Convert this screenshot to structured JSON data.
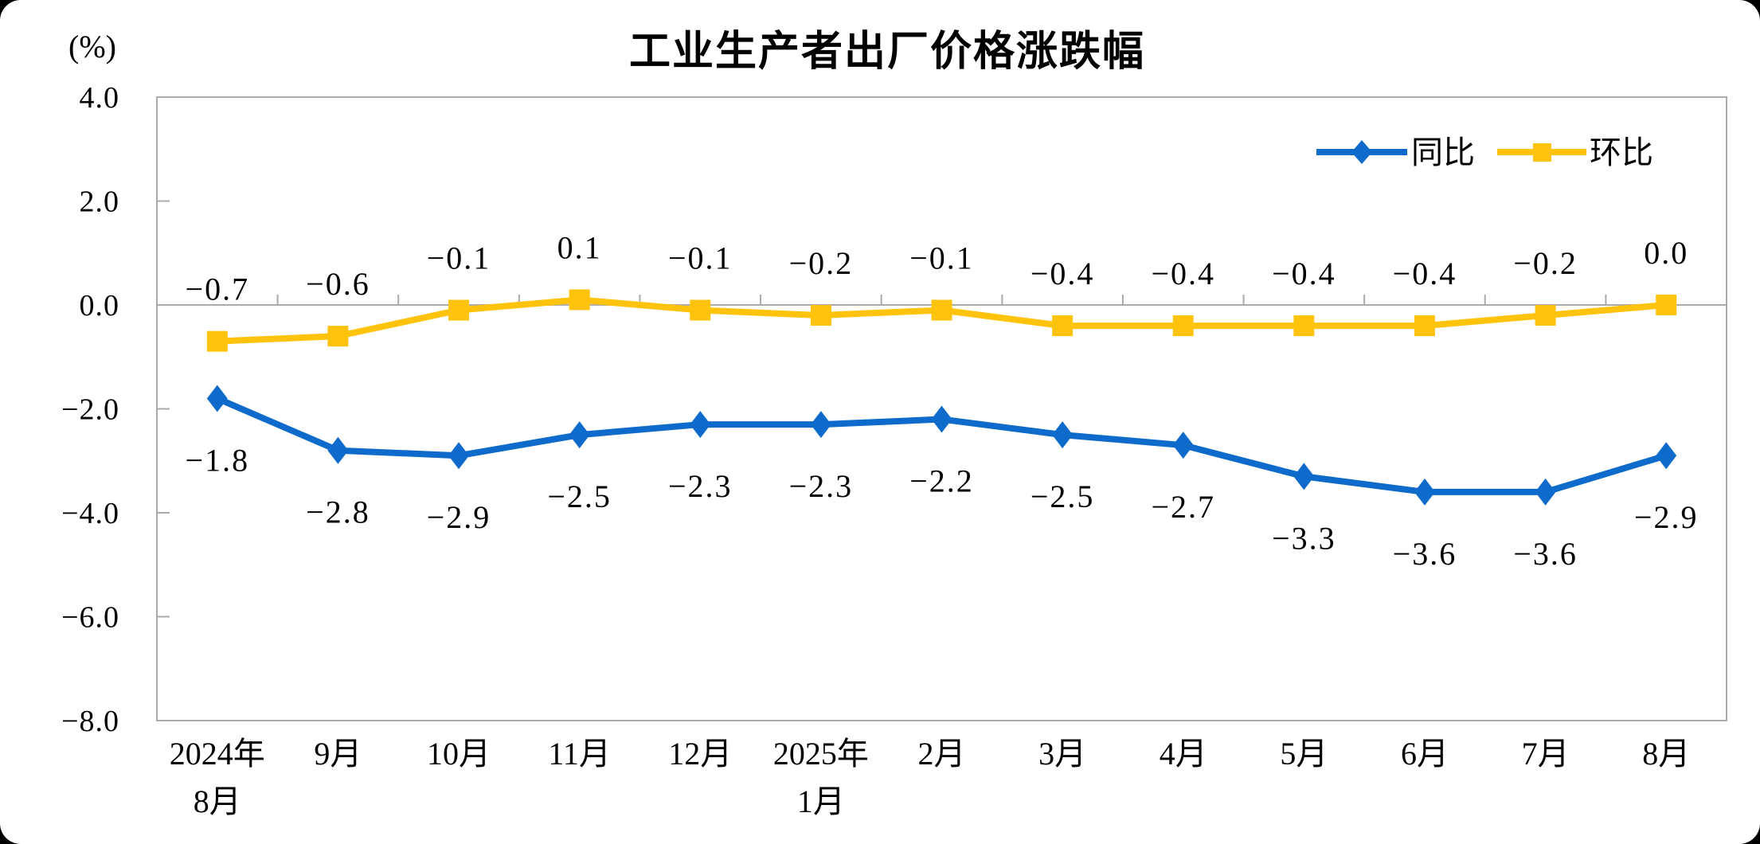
{
  "chart_data": {
    "type": "line",
    "title": "工业生产者出厂价格涨跌幅",
    "unit_label": "(%)",
    "categories": [
      [
        "2024年",
        "8月"
      ],
      [
        "9月"
      ],
      [
        "10月"
      ],
      [
        "11月"
      ],
      [
        "12月"
      ],
      [
        "2025年",
        "1月"
      ],
      [
        "2月"
      ],
      [
        "3月"
      ],
      [
        "4月"
      ],
      [
        "5月"
      ],
      [
        "6月"
      ],
      [
        "7月"
      ],
      [
        "8月"
      ]
    ],
    "series": [
      {
        "name": "同比",
        "marker": "diamond",
        "color": "#0F6BCB",
        "values": [
          -1.8,
          -2.8,
          -2.9,
          -2.5,
          -2.3,
          -2.3,
          -2.2,
          -2.5,
          -2.7,
          -3.3,
          -3.6,
          -3.6,
          -2.9
        ],
        "labels": [
          "−1.8",
          "−2.8",
          "−2.9",
          "−2.5",
          "−2.3",
          "−2.3",
          "−2.2",
          "−2.5",
          "−2.7",
          "−3.3",
          "−3.6",
          "−3.6",
          "−2.9"
        ]
      },
      {
        "name": "环比",
        "marker": "square",
        "color": "#FFC30B",
        "values": [
          -0.7,
          -0.6,
          -0.1,
          0.1,
          -0.1,
          -0.2,
          -0.1,
          -0.4,
          -0.4,
          -0.4,
          -0.4,
          -0.2,
          0.0
        ],
        "labels": [
          "−0.7",
          "−0.6",
          "−0.1",
          "0.1",
          "−0.1",
          "−0.2",
          "−0.1",
          "−0.4",
          "−0.4",
          "−0.4",
          "−0.4",
          "−0.2",
          "0.0"
        ]
      }
    ],
    "y_axis": {
      "min": -8,
      "max": 4,
      "step": 2,
      "tick_labels": [
        "4.0",
        "2.0",
        "0.0",
        "−2.0",
        "−4.0",
        "−6.0",
        "−8.0"
      ]
    },
    "axis_color": "#ABABAB",
    "text_color": "#000000",
    "legend_position": "top-right",
    "grid": false
  }
}
